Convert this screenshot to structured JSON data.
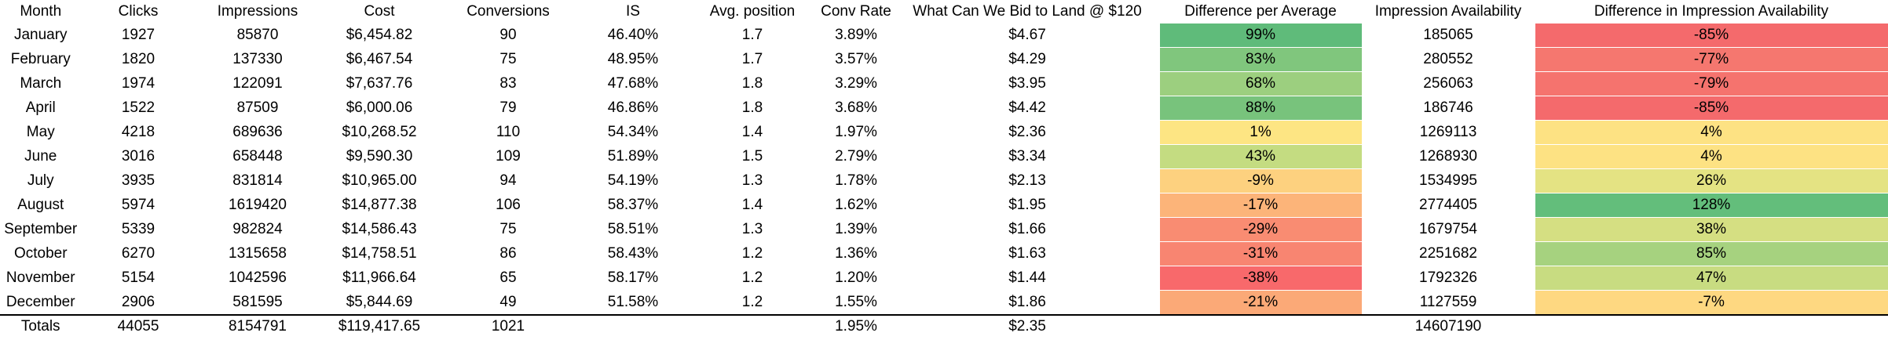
{
  "columns": [
    "Month",
    "Clicks",
    "Impressions",
    "Cost",
    "Conversions",
    "IS",
    "Avg. position",
    "Conv Rate",
    "What Can We Bid to Land @ $120",
    "Difference per Average",
    "Impression Availability",
    "Difference in Impression Availability"
  ],
  "rows": [
    {
      "month": "January",
      "clicks": "1927",
      "impressions": "85870",
      "cost": "$6,454.82",
      "conversions": "90",
      "is": "46.40%",
      "avg_position": "1.7",
      "conv_rate": "3.89%",
      "bid": "$4.67",
      "diff_avg": "99%",
      "diff_avg_color": "#5fbb7a",
      "imp_avail": "185065",
      "diff_imp": "-85%",
      "diff_imp_color": "#f46a6c"
    },
    {
      "month": "February",
      "clicks": "1820",
      "impressions": "137330",
      "cost": "$6,467.54",
      "conversions": "75",
      "is": "48.95%",
      "avg_position": "1.7",
      "conv_rate": "3.57%",
      "bid": "$4.29",
      "diff_avg": "83%",
      "diff_avg_color": "#80c67d",
      "imp_avail": "280552",
      "diff_imp": "-77%",
      "diff_imp_color": "#f5776f"
    },
    {
      "month": "March",
      "clicks": "1974",
      "impressions": "122091",
      "cost": "$7,637.76",
      "conversions": "83",
      "is": "47.68%",
      "avg_position": "1.8",
      "conv_rate": "3.29%",
      "bid": "$3.95",
      "diff_avg": "68%",
      "diff_avg_color": "#9ccf7f",
      "imp_avail": "256063",
      "diff_imp": "-79%",
      "diff_imp_color": "#f5736e"
    },
    {
      "month": "April",
      "clicks": "1522",
      "impressions": "87509",
      "cost": "$6,000.06",
      "conversions": "79",
      "is": "46.86%",
      "avg_position": "1.8",
      "conv_rate": "3.68%",
      "bid": "$4.42",
      "diff_avg": "88%",
      "diff_avg_color": "#78c37c",
      "imp_avail": "186746",
      "diff_imp": "-85%",
      "diff_imp_color": "#f46a6c"
    },
    {
      "month": "May",
      "clicks": "4218",
      "impressions": "689636",
      "cost": "$10,268.52",
      "conversions": "110",
      "is": "54.34%",
      "avg_position": "1.4",
      "conv_rate": "1.97%",
      "bid": "$2.36",
      "diff_avg": "1%",
      "diff_avg_color": "#fde583",
      "imp_avail": "1269113",
      "diff_imp": "4%",
      "diff_imp_color": "#fde283"
    },
    {
      "month": "June",
      "clicks": "3016",
      "impressions": "658448",
      "cost": "$9,590.30",
      "conversions": "109",
      "is": "51.89%",
      "avg_position": "1.5",
      "conv_rate": "2.79%",
      "bid": "$3.34",
      "diff_avg": "43%",
      "diff_avg_color": "#c4dc81",
      "imp_avail": "1268930",
      "diff_imp": "4%",
      "diff_imp_color": "#fde283"
    },
    {
      "month": "July",
      "clicks": "3935",
      "impressions": "831814",
      "cost": "$10,965.00",
      "conversions": "94",
      "is": "54.19%",
      "avg_position": "1.3",
      "conv_rate": "1.78%",
      "bid": "$2.13",
      "diff_avg": "-9%",
      "diff_avg_color": "#fdd17f",
      "imp_avail": "1534995",
      "diff_imp": "26%",
      "diff_imp_color": "#e4e383"
    },
    {
      "month": "August",
      "clicks": "5974",
      "impressions": "1619420",
      "cost": "$14,877.38",
      "conversions": "106",
      "is": "58.37%",
      "avg_position": "1.4",
      "conv_rate": "1.62%",
      "bid": "$1.95",
      "diff_avg": "-17%",
      "diff_avg_color": "#fcb479",
      "imp_avail": "2774405",
      "diff_imp": "128%",
      "diff_imp_color": "#63be7b"
    },
    {
      "month": "September",
      "clicks": "5339",
      "impressions": "982824",
      "cost": "$14,586.43",
      "conversions": "75",
      "is": "58.51%",
      "avg_position": "1.3",
      "conv_rate": "1.39%",
      "bid": "$1.66",
      "diff_avg": "-29%",
      "diff_avg_color": "#f98c72",
      "imp_avail": "1679754",
      "diff_imp": "38%",
      "diff_imp_color": "#d5df82"
    },
    {
      "month": "October",
      "clicks": "6270",
      "impressions": "1315658",
      "cost": "$14,758.51",
      "conversions": "86",
      "is": "58.43%",
      "avg_position": "1.2",
      "conv_rate": "1.36%",
      "bid": "$1.63",
      "diff_avg": "-31%",
      "diff_avg_color": "#f88571",
      "imp_avail": "2251682",
      "diff_imp": "85%",
      "diff_imp_color": "#a6d27f"
    },
    {
      "month": "November",
      "clicks": "5154",
      "impressions": "1042596",
      "cost": "$11,966.64",
      "conversions": "65",
      "is": "58.17%",
      "avg_position": "1.2",
      "conv_rate": "1.20%",
      "bid": "$1.44",
      "diff_avg": "-38%",
      "diff_avg_color": "#f8696b",
      "imp_avail": "1792326",
      "diff_imp": "47%",
      "diff_imp_color": "#c8dc81"
    },
    {
      "month": "December",
      "clicks": "2906",
      "impressions": "581595",
      "cost": "$5,844.69",
      "conversions": "49",
      "is": "51.58%",
      "avg_position": "1.2",
      "conv_rate": "1.55%",
      "bid": "$1.86",
      "diff_avg": "-21%",
      "diff_avg_color": "#fba977",
      "imp_avail": "1127559",
      "diff_imp": "-7%",
      "diff_imp_color": "#fed881"
    }
  ],
  "totals": {
    "label": "Totals",
    "clicks": "44055",
    "impressions": "8154791",
    "cost": "$119,417.65",
    "conversions": "1021",
    "conv_rate": "1.95%",
    "bid": "$2.35",
    "imp_avail": "14607190"
  }
}
